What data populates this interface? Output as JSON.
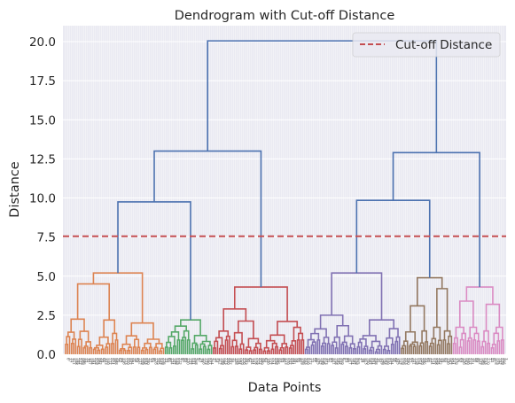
{
  "chart_data": {
    "type": "dendrogram",
    "title": "Dendrogram with Cut-off Distance",
    "xlabel": "Data Points",
    "ylabel": "Distance",
    "ylim": [
      0,
      21
    ],
    "yticks": [
      "0.0",
      "2.5",
      "5.0",
      "7.5",
      "10.0",
      "12.5",
      "15.0",
      "17.5",
      "20.0"
    ],
    "ytick_values": [
      0,
      2.5,
      5,
      7.5,
      10,
      12.5,
      15,
      17.5,
      20
    ],
    "grid": true,
    "legend_position": "top-right",
    "cutoff": {
      "label": "Cut-off Distance",
      "value": 7.55,
      "color": "#c44e52",
      "style": "dashed"
    },
    "above_cut_color": "#4c72b0",
    "clusters": [
      {
        "color": "#dd8452",
        "leaves": 50,
        "height": 5.2,
        "splits": [
          [
            4.5,
            2.9,
            1.6
          ],
          [
            2.0,
            1.5,
            1.7,
            1.0
          ]
        ]
      },
      {
        "color": "#55a868",
        "leaves": 24,
        "height": 2.2,
        "splits": [
          [
            1.8,
            1.3
          ],
          [
            1.2,
            0.8
          ]
        ]
      },
      {
        "color": "#c44e52",
        "leaves": 46,
        "height": 4.3,
        "splits": [
          [
            2.9,
            2.4,
            1.4
          ],
          [
            2.1,
            1.6,
            1.0
          ]
        ]
      },
      {
        "color": "#8172b3",
        "leaves": 48,
        "height": 5.2,
        "splits": [
          [
            2.5,
            1.7,
            1.1
          ],
          [
            2.2,
            1.5,
            1.2
          ]
        ]
      },
      {
        "color": "#937860",
        "leaves": 26,
        "height": 4.9,
        "splits": [
          [
            3.1,
            2.2
          ],
          [
            4.2,
            1.5
          ]
        ]
      },
      {
        "color": "#da8bc3",
        "leaves": 26,
        "height": 4.3,
        "splits": [
          [
            3.4,
            1.7
          ],
          [
            3.2,
            1.5
          ]
        ]
      }
    ],
    "links": [
      {
        "children": [
          0,
          1
        ],
        "height": 9.75
      },
      {
        "children": [
          "L01",
          2
        ],
        "height": 13.0
      },
      {
        "children": [
          3,
          4
        ],
        "height": 9.85
      },
      {
        "children": [
          "L34",
          5
        ],
        "height": 12.9
      },
      {
        "children": [
          "L012",
          "L345"
        ],
        "height": 20.05
      }
    ]
  }
}
